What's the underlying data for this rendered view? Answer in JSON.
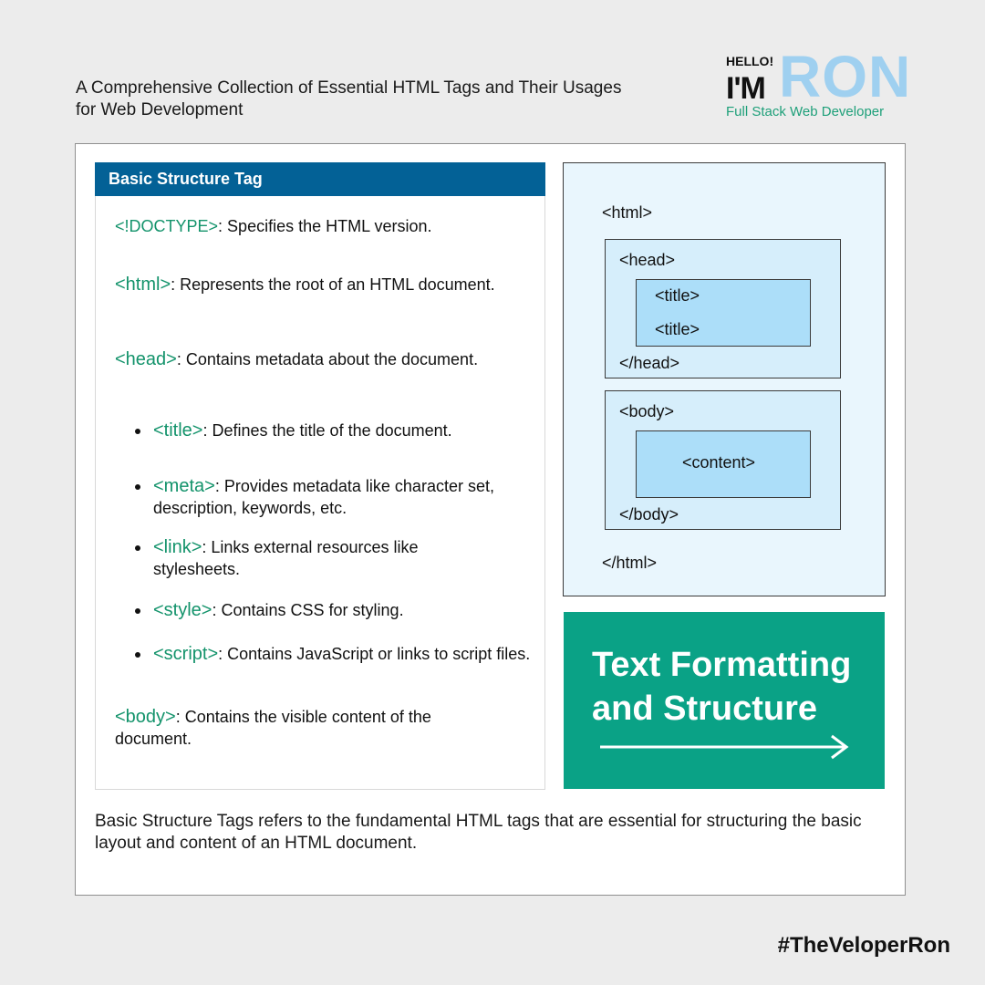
{
  "intro": "A Comprehensive Collection of Essential HTML Tags and Their Usages for Web Development",
  "brand": {
    "hello": "HELLO!",
    "im": "I'M",
    "name": "RON",
    "role": "Full Stack Web Developer"
  },
  "card": {
    "title": "Basic Structure Tag",
    "entries": [
      {
        "tag": "<!DOCTYPE>",
        "desc": ": Specifies the HTML version."
      },
      {
        "tag": "<html>",
        "desc": ": Represents the root of an HTML document."
      },
      {
        "tag": "<head>",
        "desc": ":  Contains metadata about the document."
      },
      {
        "tag": "<title>",
        "desc": ": Defines the title of the document."
      },
      {
        "tag": "<meta>",
        "desc": ": Provides metadata like character set, description, keywords, etc."
      },
      {
        "tag": "<link>",
        "desc": ": Links external resources like stylesheets."
      },
      {
        "tag": "<style>",
        "desc": ": Contains CSS for styling."
      },
      {
        "tag": "<script>",
        "desc": ": Contains JavaScript or links to script files."
      },
      {
        "tag": "<body>",
        "desc": ": Contains the visible content of the document."
      }
    ]
  },
  "diagram": {
    "html_open": "<html>",
    "head_open": "<head>",
    "title_1": "<title>",
    "title_2": "<title>",
    "head_close": "</head>",
    "body_open": "<body>",
    "content": "<content>",
    "body_close": "</body>",
    "html_close": "</html>"
  },
  "cta": {
    "line1": "Text Formatting",
    "line2": "and Structure",
    "arrow_icon": "arrow-right-icon"
  },
  "description": "Basic Structure Tags refers to the fundamental HTML tags that are essential for structuring the basic layout and content of an HTML document.",
  "hashtag": "#TheVeloperRon",
  "colors": {
    "background": "#ececec",
    "header_blue": "#036196",
    "tag_green": "#13936b",
    "cta_green": "#0aa286",
    "brand_light_blue": "#9fd0f0",
    "diagram_bg": "#e9f6fd",
    "outer_box": "#d6eefb",
    "inner_box": "#acdef9"
  }
}
